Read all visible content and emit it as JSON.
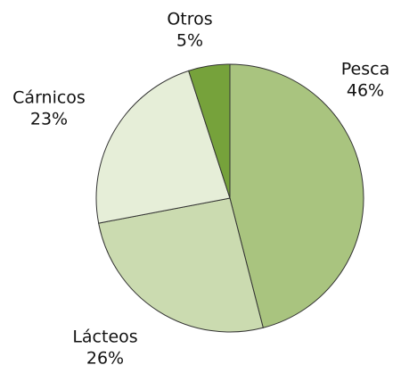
{
  "chart_data": {
    "type": "pie",
    "categories": [
      "Pesca",
      "Lácteos",
      "Cárnicos",
      "Otros"
    ],
    "values": [
      46,
      26,
      23,
      5
    ],
    "value_labels": [
      "46%",
      "26%",
      "23%",
      "5%"
    ],
    "colors": [
      "#a9c47f",
      "#cbdbb0",
      "#e6eed8",
      "#76a23b"
    ]
  }
}
